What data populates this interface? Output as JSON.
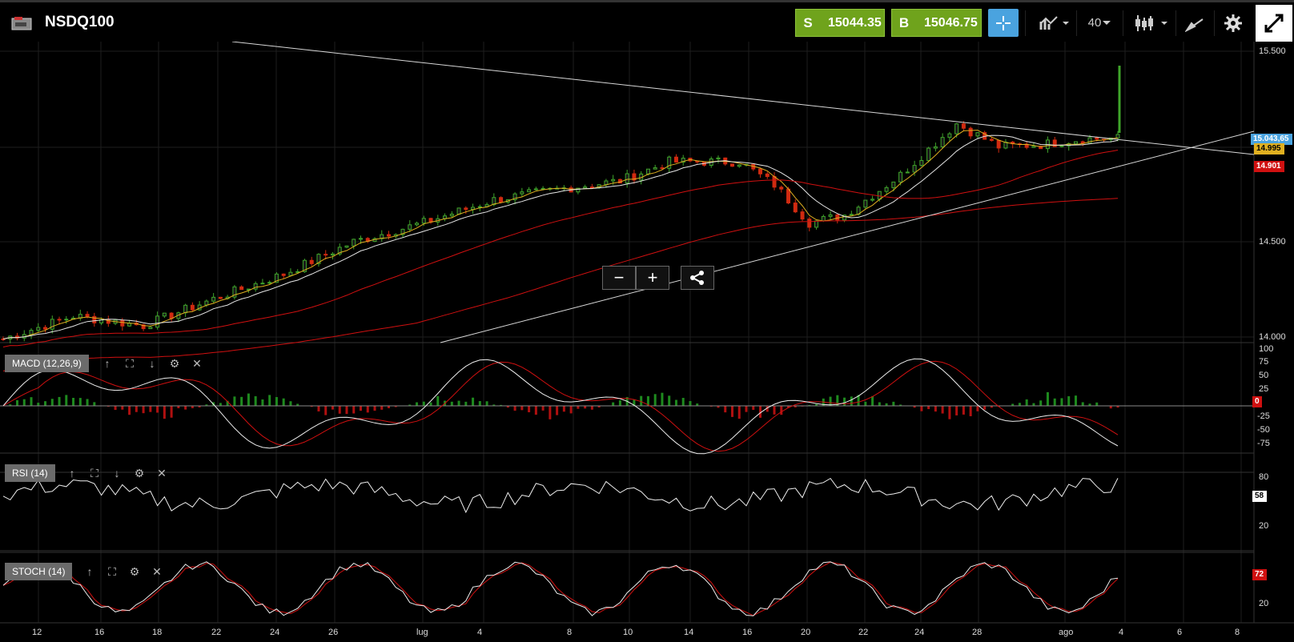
{
  "header": {
    "symbol": "NSDQ100",
    "sell": {
      "tag": "S",
      "value": "15044.35"
    },
    "buy": {
      "tag": "B",
      "value": "15046.75"
    },
    "timeframe": "40",
    "colors": {
      "accent": "#6fa31c",
      "crosshair": "#4aa3df",
      "background": "#000000"
    }
  },
  "price_axis": {
    "ticks": [
      "15.500",
      "14.500",
      "14.000"
    ],
    "current_tag": "15.043,65",
    "ma_tag": "14.995",
    "ma_long_tag": "14.901"
  },
  "time_axis": {
    "ticks": [
      "12",
      "16",
      "18",
      "22",
      "24",
      "26",
      "lug",
      "4",
      "8",
      "10",
      "14",
      "16",
      "20",
      "22",
      "24",
      "28",
      "ago",
      "4",
      "6",
      "8"
    ]
  },
  "zoom": {
    "minus": "−",
    "plus": "+"
  },
  "indicators": {
    "macd": {
      "label": "MACD (12,26,9)",
      "ticks": [
        "100",
        "75",
        "50",
        "25",
        "0",
        "-25",
        "-50",
        "-75"
      ],
      "value_tag": "0"
    },
    "rsi": {
      "label": "RSI (14)",
      "ticks": [
        "80",
        "20"
      ],
      "value_tag": "58"
    },
    "stoch": {
      "label": "STOCH (14)",
      "ticks": [
        "20"
      ],
      "value_tag": "72"
    }
  },
  "icons": [
    "logo-icon",
    "crosshair-icon",
    "chart-type-icon",
    "candles-icon",
    "drawing-icon",
    "gear-icon",
    "expand-icon",
    "share-icon",
    "up-arrow-icon",
    "fullscreen-icon",
    "down-arrow-icon",
    "close-icon"
  ]
}
